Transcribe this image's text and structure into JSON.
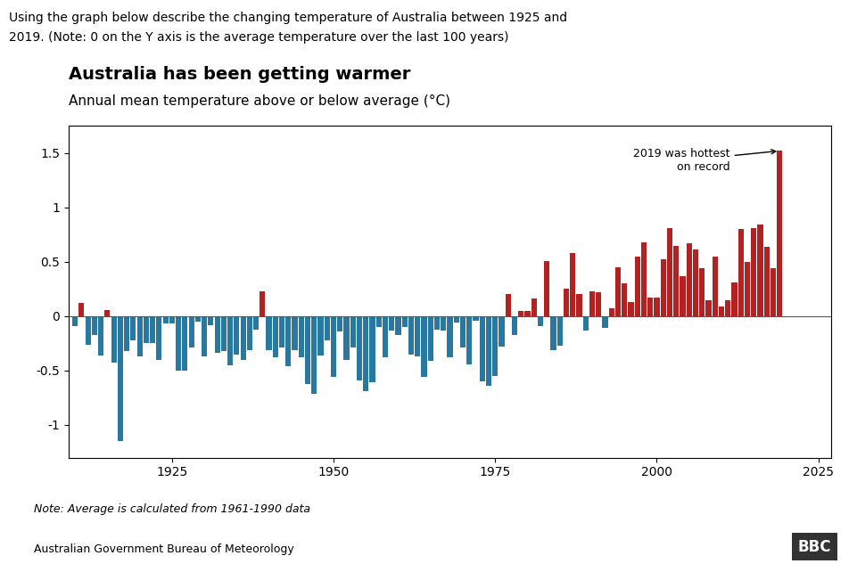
{
  "chart_data": {
    "type": "bar",
    "header_lines": [
      "Using the graph below describe the changing temperature of Australia between 1925 and",
      "2019. (Note: 0 on the Y axis is the average temperature over the last 100 years)"
    ],
    "title": "Australia has been getting warmer",
    "subtitle": "Annual mean temperature above or below average (°C)",
    "annotation": "2019 was hottest\non record",
    "note": "Note: Average is calculated from 1961-1990 data",
    "source": "Australian Government Bureau of Meteorology",
    "logo": "BBC",
    "x": [
      1910,
      1911,
      1912,
      1913,
      1914,
      1915,
      1916,
      1917,
      1918,
      1919,
      1920,
      1921,
      1922,
      1923,
      1924,
      1925,
      1926,
      1927,
      1928,
      1929,
      1930,
      1931,
      1932,
      1933,
      1934,
      1935,
      1936,
      1937,
      1938,
      1939,
      1940,
      1941,
      1942,
      1943,
      1944,
      1945,
      1946,
      1947,
      1948,
      1949,
      1950,
      1951,
      1952,
      1953,
      1954,
      1955,
      1956,
      1957,
      1958,
      1959,
      1960,
      1961,
      1962,
      1963,
      1964,
      1965,
      1966,
      1967,
      1968,
      1969,
      1970,
      1971,
      1972,
      1973,
      1974,
      1975,
      1976,
      1977,
      1978,
      1979,
      1980,
      1981,
      1982,
      1983,
      1984,
      1985,
      1986,
      1987,
      1988,
      1989,
      1990,
      1991,
      1992,
      1993,
      1994,
      1995,
      1996,
      1997,
      1998,
      1999,
      2000,
      2001,
      2002,
      2003,
      2004,
      2005,
      2006,
      2007,
      2008,
      2009,
      2010,
      2011,
      2012,
      2013,
      2014,
      2015,
      2016,
      2017,
      2018,
      2019
    ],
    "values": [
      -0.09,
      0.12,
      -0.26,
      -0.17,
      -0.36,
      0.06,
      -0.43,
      -1.15,
      -0.32,
      -0.22,
      -0.37,
      -0.25,
      -0.25,
      -0.4,
      -0.07,
      -0.07,
      -0.5,
      -0.5,
      -0.29,
      -0.05,
      -0.37,
      -0.08,
      -0.34,
      -0.32,
      -0.45,
      -0.35,
      -0.4,
      -0.31,
      -0.12,
      0.23,
      -0.31,
      -0.38,
      -0.29,
      -0.46,
      -0.31,
      -0.38,
      -0.62,
      -0.71,
      -0.36,
      -0.22,
      -0.56,
      -0.14,
      -0.4,
      -0.29,
      -0.59,
      -0.69,
      -0.61,
      -0.1,
      -0.38,
      -0.13,
      -0.17,
      -0.1,
      -0.35,
      -0.37,
      -0.56,
      -0.41,
      -0.12,
      -0.13,
      -0.38,
      -0.06,
      -0.29,
      -0.44,
      -0.04,
      -0.6,
      -0.64,
      -0.55,
      -0.28,
      0.2,
      -0.17,
      0.05,
      0.05,
      0.16,
      -0.09,
      0.51,
      -0.31,
      -0.27,
      0.25,
      0.58,
      0.2,
      -0.13,
      0.23,
      0.22,
      -0.11,
      0.07,
      0.45,
      0.3,
      0.13,
      0.55,
      0.68,
      0.17,
      0.17,
      0.52,
      0.81,
      0.65,
      0.37,
      0.67,
      0.61,
      0.44,
      0.15,
      0.55,
      0.09,
      0.15,
      0.31,
      0.8,
      0.5,
      0.81,
      0.84,
      0.64,
      0.44,
      1.52
    ],
    "colors": [
      "#2878a0",
      "#b22222",
      "#2878a0",
      "#2878a0",
      "#2878a0",
      "#b22222",
      "#2878a0",
      "#2878a0",
      "#2878a0",
      "#2878a0",
      "#2878a0",
      "#2878a0",
      "#2878a0",
      "#2878a0",
      "#2878a0",
      "#2878a0",
      "#2878a0",
      "#2878a0",
      "#2878a0",
      "#2878a0",
      "#2878a0",
      "#2878a0",
      "#2878a0",
      "#2878a0",
      "#2878a0",
      "#2878a0",
      "#2878a0",
      "#2878a0",
      "#2878a0",
      "#b22222",
      "#2878a0",
      "#2878a0",
      "#2878a0",
      "#2878a0",
      "#2878a0",
      "#2878a0",
      "#2878a0",
      "#2878a0",
      "#2878a0",
      "#2878a0",
      "#2878a0",
      "#2878a0",
      "#2878a0",
      "#2878a0",
      "#2878a0",
      "#2878a0",
      "#2878a0",
      "#2878a0",
      "#2878a0",
      "#2878a0",
      "#2878a0",
      "#2878a0",
      "#2878a0",
      "#2878a0",
      "#2878a0",
      "#2878a0",
      "#2878a0",
      "#2878a0",
      "#2878a0",
      "#2878a0",
      "#2878a0",
      "#2878a0",
      "#2878a0",
      "#2878a0",
      "#2878a0",
      "#2878a0",
      "#2878a0",
      "#b22222",
      "#2878a0",
      "#b22222",
      "#b22222",
      "#b22222",
      "#2878a0",
      "#b22222",
      "#2878a0",
      "#2878a0",
      "#b22222",
      "#b22222",
      "#b22222",
      "#2878a0",
      "#b22222",
      "#b22222",
      "#2878a0",
      "#b22222",
      "#b22222",
      "#b22222",
      "#b22222",
      "#b22222",
      "#b22222",
      "#b22222",
      "#b22222",
      "#b22222",
      "#b22222",
      "#b22222",
      "#b22222",
      "#b22222",
      "#b22222",
      "#b22222",
      "#b22222",
      "#b22222",
      "#b22222",
      "#b22222",
      "#b22222",
      "#b22222",
      "#b22222",
      "#b22222",
      "#b22222",
      "#b22222",
      "#b22222",
      "#b22222"
    ],
    "xlim": [
      1909,
      2027
    ],
    "xticks": [
      1925,
      1950,
      1975,
      2000,
      2025
    ],
    "ylim": [
      -1.3,
      1.75
    ],
    "yticks": [
      -1,
      -0.5,
      0,
      0.5,
      1,
      1.5
    ],
    "grid": false
  }
}
